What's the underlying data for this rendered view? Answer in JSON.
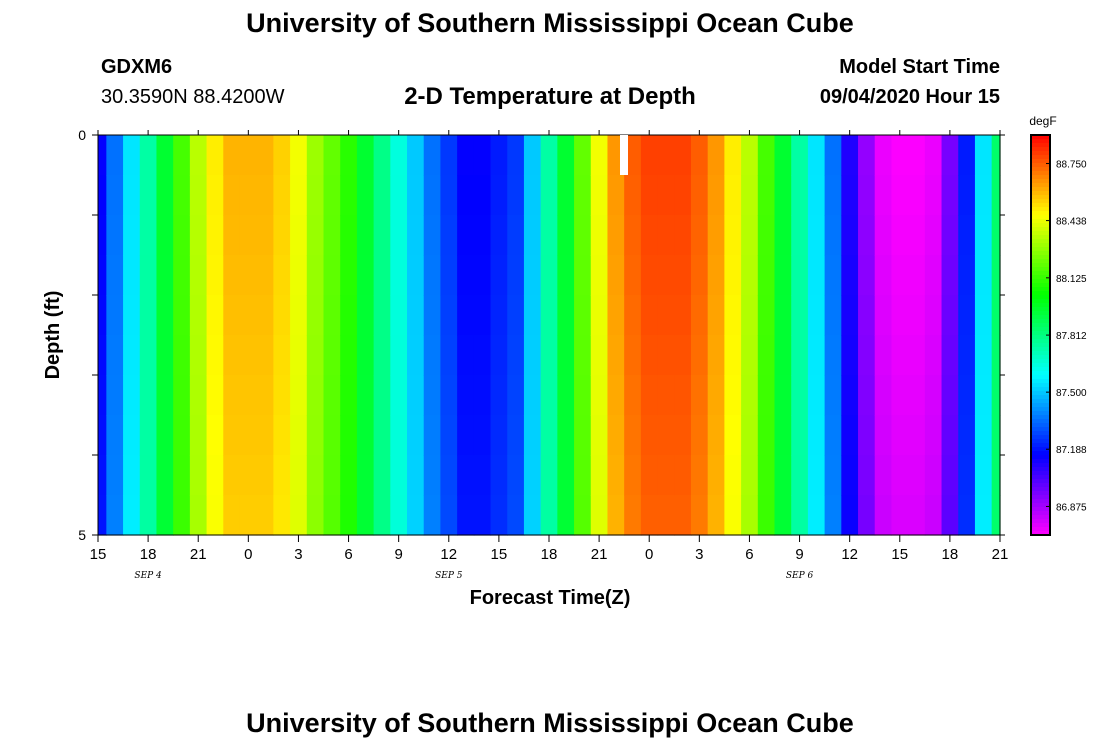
{
  "header": {
    "title": "University of Southern Mississippi Ocean Cube",
    "station": "GDXM6",
    "coords": "30.3590N 88.4200W",
    "subtitle": "2-D Temperature at Depth",
    "start_label": "Model Start Time",
    "start_value": "09/04/2020 Hour 15"
  },
  "footer": {
    "title": "University of Southern Mississippi Ocean Cube"
  },
  "chart_data": {
    "type": "heatmap",
    "title": "2-D Temperature at Depth",
    "xlabel": "Forecast Time(Z)",
    "ylabel": "Depth (ft)",
    "x_tick_labels": [
      "15",
      "18",
      "21",
      "0",
      "3",
      "6",
      "9",
      "12",
      "15",
      "18",
      "21",
      "0",
      "3",
      "6",
      "9",
      "12",
      "15",
      "18",
      "21"
    ],
    "date_labels": [
      {
        "label": "SEP 4",
        "tick_index": 1
      },
      {
        "label": "SEP 5",
        "tick_index": 7
      },
      {
        "label": "SEP 6",
        "tick_index": 14
      }
    ],
    "ylim": [
      0,
      5
    ],
    "y_tick_labels": [
      "0",
      "5"
    ],
    "colorbar": {
      "unit": "degF",
      "tick_values": [
        88.75,
        88.438,
        88.125,
        87.812,
        87.5,
        87.188,
        86.875
      ],
      "tick_labels": [
        "88.750",
        "88.438",
        "88.125",
        "87.812",
        "87.500",
        "87.188",
        "86.875"
      ],
      "min": 86.719,
      "max": 88.906
    },
    "depth_levels": [
      0.25,
      0.75,
      1.25,
      1.75,
      2.25,
      2.75,
      3.25,
      3.75,
      4.25,
      4.75
    ],
    "hour_offsets": [
      0,
      1,
      2,
      3,
      4,
      5,
      6,
      7,
      8,
      9,
      10,
      11,
      12,
      13,
      14,
      15,
      16,
      17,
      18,
      19,
      20,
      21,
      22,
      23,
      24,
      25,
      26,
      27,
      28,
      29,
      30,
      31,
      32,
      33,
      34,
      35,
      36,
      37,
      38,
      39,
      40,
      41,
      42,
      43,
      44,
      45,
      46,
      47,
      48,
      49,
      50,
      51,
      52,
      53,
      54
    ],
    "surface_temperatures": [
      87.15,
      87.35,
      87.55,
      87.75,
      87.95,
      88.15,
      88.35,
      88.5,
      88.6,
      88.6,
      88.6,
      88.55,
      88.45,
      88.3,
      88.2,
      88.1,
      87.95,
      87.8,
      87.65,
      87.5,
      87.35,
      87.25,
      87.15,
      87.15,
      87.2,
      87.25,
      87.5,
      87.75,
      87.95,
      88.2,
      88.45,
      88.65,
      88.75,
      88.8,
      88.8,
      88.8,
      88.75,
      88.65,
      88.5,
      88.35,
      88.15,
      87.95,
      87.75,
      87.55,
      87.35,
      87.1,
      86.9,
      86.75,
      86.72,
      86.72,
      86.75,
      86.95,
      87.2,
      87.55,
      87.85
    ],
    "notes": [
      "x range: 09/04 hour 15 to 09/06 hour 21, 54 hours"
    ]
  }
}
